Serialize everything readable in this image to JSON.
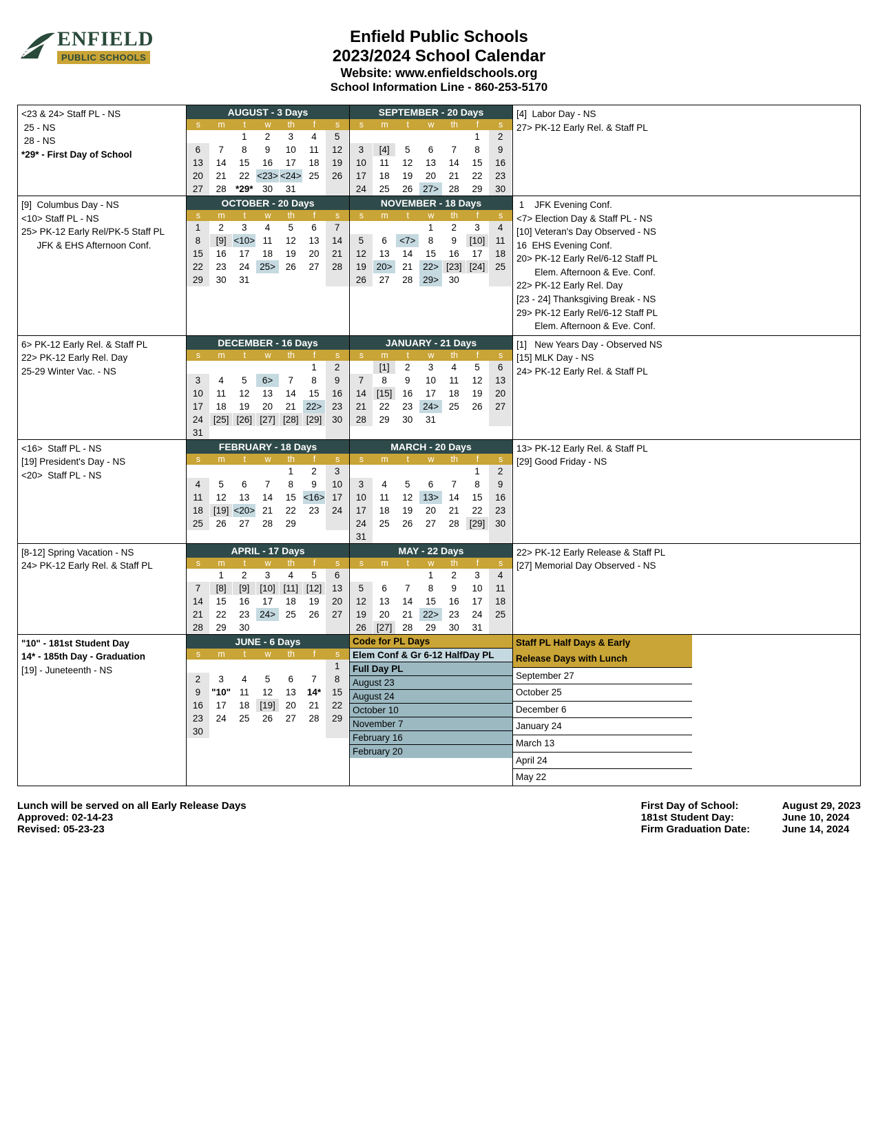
{
  "header": {
    "logo_name": "ENFIELD",
    "logo_sub": "PUBLIC SCHOOLS",
    "title1": "Enfield Public Schools",
    "title2": "2023/2024 School Calendar",
    "website": "Website: www.enfieldschools.org",
    "infoline": "School Information Line - 860-253-5170"
  },
  "colors": {
    "month_bg": "#2f4a4a",
    "dow_bg": "#c9a436",
    "highlight": "#c5d9e0",
    "weekend": "#e5e5e5"
  },
  "dow_labels": [
    "s",
    "m",
    "t",
    "w",
    "th",
    "f",
    "s"
  ],
  "rows": [
    {
      "left": [
        "<23 & 24> Staff PL - NS",
        " 25 - NS",
        " 28 - NS",
        "<b>*29* - First Day of School</b>"
      ],
      "right": [
        "[4]  Labor Day - NS",
        "27> PK-12 Early Rel. & Staff PL"
      ],
      "months": [
        {
          "title": "AUGUST - 3 Days",
          "weeks": [
            [
              "",
              "",
              "1",
              "2",
              "3",
              "4",
              "5"
            ],
            [
              "6",
              "7",
              "8",
              "9",
              "10",
              "11",
              "12"
            ],
            [
              "13",
              "14",
              "15",
              "16",
              "17",
              "18",
              "19"
            ],
            [
              "20",
              "21",
              "22",
              "<23>|h",
              "<24>|h",
              "25",
              "26"
            ],
            [
              "27",
              "28",
              "*29*|b",
              "30",
              "31",
              "",
              ""
            ]
          ]
        },
        {
          "title": "SEPTEMBER - 20 Days",
          "weeks": [
            [
              "",
              "",
              "",
              "",
              "",
              "1",
              "2"
            ],
            [
              "3",
              "[4]|g",
              "5",
              "6",
              "7",
              "8",
              "9"
            ],
            [
              "10",
              "11",
              "12",
              "13",
              "14",
              "15",
              "16"
            ],
            [
              "17",
              "18",
              "19",
              "20",
              "21",
              "22",
              "23"
            ],
            [
              "24",
              "25",
              "26",
              "27>|h",
              "28",
              "29",
              "30"
            ]
          ]
        }
      ]
    },
    {
      "left": [
        "[9]  Columbus Day - NS",
        "<10> Staff PL - NS",
        "25> PK-12 Early Rel/PK-5 Staff PL",
        "      JFK & EHS Afternoon Conf."
      ],
      "right": [
        " 1    JFK Evening Conf.",
        "<7> Election Day & Staff PL - NS",
        "[10] Veteran's Day Observed - NS",
        "16  EHS Evening Conf.",
        "20> PK-12 Early Rel/6-12 Staff PL",
        "       Elem. Afternoon & Eve. Conf.",
        "22> PK-12 Early Rel. Day",
        "[23 - 24] Thanksgiving Break - NS",
        "29> PK-12 Early Rel/6-12 Staff PL",
        "       Elem. Afternoon & Eve. Conf."
      ],
      "months": [
        {
          "title": "OCTOBER -  20 Days",
          "weeks": [
            [
              "1",
              "2",
              "3",
              "4",
              "5",
              "6",
              "7"
            ],
            [
              "8",
              "[9]|g",
              "<10>|h",
              "11",
              "12",
              "13",
              "14"
            ],
            [
              "15",
              "16",
              "17",
              "18",
              "19",
              "20",
              "21"
            ],
            [
              "22",
              "23",
              "24",
              "25>|h",
              "26",
              "27",
              "28"
            ],
            [
              "29",
              "30",
              "31",
              "",
              "",
              "",
              ""
            ]
          ]
        },
        {
          "title": "NOVEMBER -  18 Days",
          "weeks": [
            [
              "",
              "",
              "",
              "1",
              "2",
              "3",
              "4"
            ],
            [
              "5",
              "6",
              "<7>|h",
              "8",
              "9",
              "[10]|g",
              "11"
            ],
            [
              "12",
              "13",
              "14",
              "15",
              "16",
              "17",
              "18"
            ],
            [
              "19",
              "20>|h",
              "21",
              "22>|h",
              "[23]|g",
              "[24]|g",
              "25"
            ],
            [
              "26",
              "27",
              "28",
              "29>|h",
              "30",
              "",
              ""
            ]
          ]
        }
      ]
    },
    {
      "left": [
        "6> PK-12 Early Rel. & Staff PL",
        "22> PK-12 Early Rel. Day",
        "25-29 Winter Vac. - NS"
      ],
      "right": [
        "[1]   New Years Day - Observed NS",
        "[15] MLK Day - NS",
        "24> PK-12 Early Rel. & Staff PL"
      ],
      "months": [
        {
          "title": "DECEMBER - 16 Days",
          "weeks": [
            [
              "",
              "",
              "",
              "",
              "",
              "1",
              "2"
            ],
            [
              "3",
              "4",
              "5",
              "6>|h",
              "7",
              "8",
              "9"
            ],
            [
              "10",
              "11",
              "12",
              "13",
              "14",
              "15",
              "16"
            ],
            [
              "17",
              "18",
              "19",
              "20",
              "21",
              "22>|h",
              "23"
            ],
            [
              "24",
              "[25]|g",
              "[26]|g",
              "[27]|g",
              "[28]|g",
              "[29]|g",
              "30"
            ],
            [
              "31",
              "",
              "",
              "",
              "",
              "",
              ""
            ]
          ]
        },
        {
          "title": "JANUARY - 21 Days",
          "weeks": [
            [
              "",
              "[1]|g",
              "2",
              "3",
              "4",
              "5",
              "6"
            ],
            [
              "7",
              "8",
              "9",
              "10",
              "11",
              "12",
              "13"
            ],
            [
              "14",
              "[15]|g",
              "16",
              "17",
              "18",
              "19",
              "20"
            ],
            [
              "21",
              "22",
              "23",
              "24>|h",
              "25",
              "26",
              "27"
            ],
            [
              "28",
              "29",
              "30",
              "31",
              "",
              "",
              ""
            ]
          ]
        }
      ]
    },
    {
      "left": [
        "<16>  Staff PL - NS",
        "[19] President's Day - NS",
        "<20>  Staff PL - NS"
      ],
      "right": [
        "13> PK-12 Early Rel. & Staff PL",
        "[29] Good Friday - NS"
      ],
      "months": [
        {
          "title": "FEBRUARY - 18 Days",
          "weeks": [
            [
              "",
              "",
              "",
              "",
              "1",
              "2",
              "3"
            ],
            [
              "4",
              "5",
              "6",
              "7",
              "8",
              "9",
              "10"
            ],
            [
              "11",
              "12",
              "13",
              "14",
              "15",
              "<16>|h",
              "17"
            ],
            [
              "18",
              "[19]|g",
              "<20>|h",
              "21",
              "22",
              "23",
              "24"
            ],
            [
              "25",
              "26",
              "27",
              "28",
              "29",
              "",
              ""
            ]
          ]
        },
        {
          "title": "MARCH - 20 Days",
          "weeks": [
            [
              "",
              "",
              "",
              "",
              "",
              "1",
              "2"
            ],
            [
              "3",
              "4",
              "5",
              "6",
              "7",
              "8",
              "9"
            ],
            [
              "10",
              "11",
              "12",
              "13>|h",
              "14",
              "15",
              "16"
            ],
            [
              "17",
              "18",
              "19",
              "20",
              "21",
              "22",
              "23"
            ],
            [
              "24",
              "25",
              "26",
              "27",
              "28",
              "[29]|g",
              "30"
            ],
            [
              "31",
              "",
              "",
              "",
              "",
              "",
              ""
            ]
          ]
        }
      ]
    },
    {
      "left": [
        "[8-12] Spring Vacation - NS",
        "24> PK-12 Early Rel. & Staff PL"
      ],
      "right": [
        "22> PK-12 Early Release & Staff PL",
        "[27] Memorial Day Observed - NS"
      ],
      "months": [
        {
          "title": "APRIL - 17 Days",
          "weeks": [
            [
              "",
              "1",
              "2",
              "3",
              "4",
              "5",
              "6"
            ],
            [
              "7",
              "[8]|g",
              "[9]|g",
              "[10]|g",
              "[11]|g",
              "[12]|g",
              "13"
            ],
            [
              "14",
              "15",
              "16",
              "17",
              "18",
              "19",
              "20"
            ],
            [
              "21",
              "22",
              "23",
              "24>|h",
              "25",
              "26",
              "27"
            ],
            [
              "28",
              "29",
              "30",
              "",
              "",
              "",
              ""
            ]
          ]
        },
        {
          "title": "MAY - 22 Days",
          "weeks": [
            [
              "",
              "",
              "",
              "1",
              "2",
              "3",
              "4"
            ],
            [
              "5",
              "6",
              "7",
              "8",
              "9",
              "10",
              "11"
            ],
            [
              "12",
              "13",
              "14",
              "15",
              "16",
              "17",
              "18"
            ],
            [
              "19",
              "20",
              "21",
              "22>|h",
              "23",
              "24",
              "25"
            ],
            [
              "26",
              "[27]|g",
              "28",
              "29",
              "30",
              "31",
              ""
            ]
          ]
        }
      ]
    }
  ],
  "last_row": {
    "left": [
      "<b>\"10\"</b> - 181st Student Day",
      "<b>14*</b> - 185th Day - Graduation",
      "[19] - Juneteenth - NS"
    ],
    "month": {
      "title": "JUNE - 6 Days",
      "weeks": [
        [
          "",
          "",
          "",
          "",
          "",
          "",
          "1"
        ],
        [
          "2",
          "3",
          "4",
          "5",
          "6",
          "7",
          "8"
        ],
        [
          "9",
          "\"10\"|b",
          "11",
          "12",
          "13",
          "14*|b",
          "15"
        ],
        [
          "16",
          "17",
          "18",
          "[19]|g",
          "20",
          "21",
          "22"
        ],
        [
          "23",
          "24",
          "25",
          "26",
          "27",
          "28",
          "29"
        ],
        [
          "30",
          "",
          "",
          "",
          "",
          "",
          ""
        ]
      ]
    },
    "legend_mid": {
      "h1": "Code for PL Days",
      "h2": "Elem Conf & Gr 6-12 HalfDay PL",
      "h3": "Full Day PL",
      "items": [
        "August 23",
        "August 24",
        "October 10",
        "November 7",
        "February 16",
        "February 20"
      ]
    },
    "legend_right": {
      "h1": "Staff PL Half Days & Early",
      "h2": "Release Days with Lunch",
      "items": [
        "September 27",
        "October 25",
        "December 6",
        "January 24",
        "March 13",
        "April 24",
        "May 22"
      ]
    }
  },
  "footer": {
    "lunch": "Lunch will be served on all Early Release Days",
    "approved": "Approved:   02-14-23",
    "revised": "Revised:   05-23-23",
    "lines": [
      {
        "lbl": "First Day of School:",
        "val": "August 29, 2023"
      },
      {
        "lbl": "181st Student Day:",
        "val": "June 10, 2024"
      },
      {
        "lbl": "Firm Graduation Date:",
        "val": "June 14, 2024"
      }
    ]
  }
}
